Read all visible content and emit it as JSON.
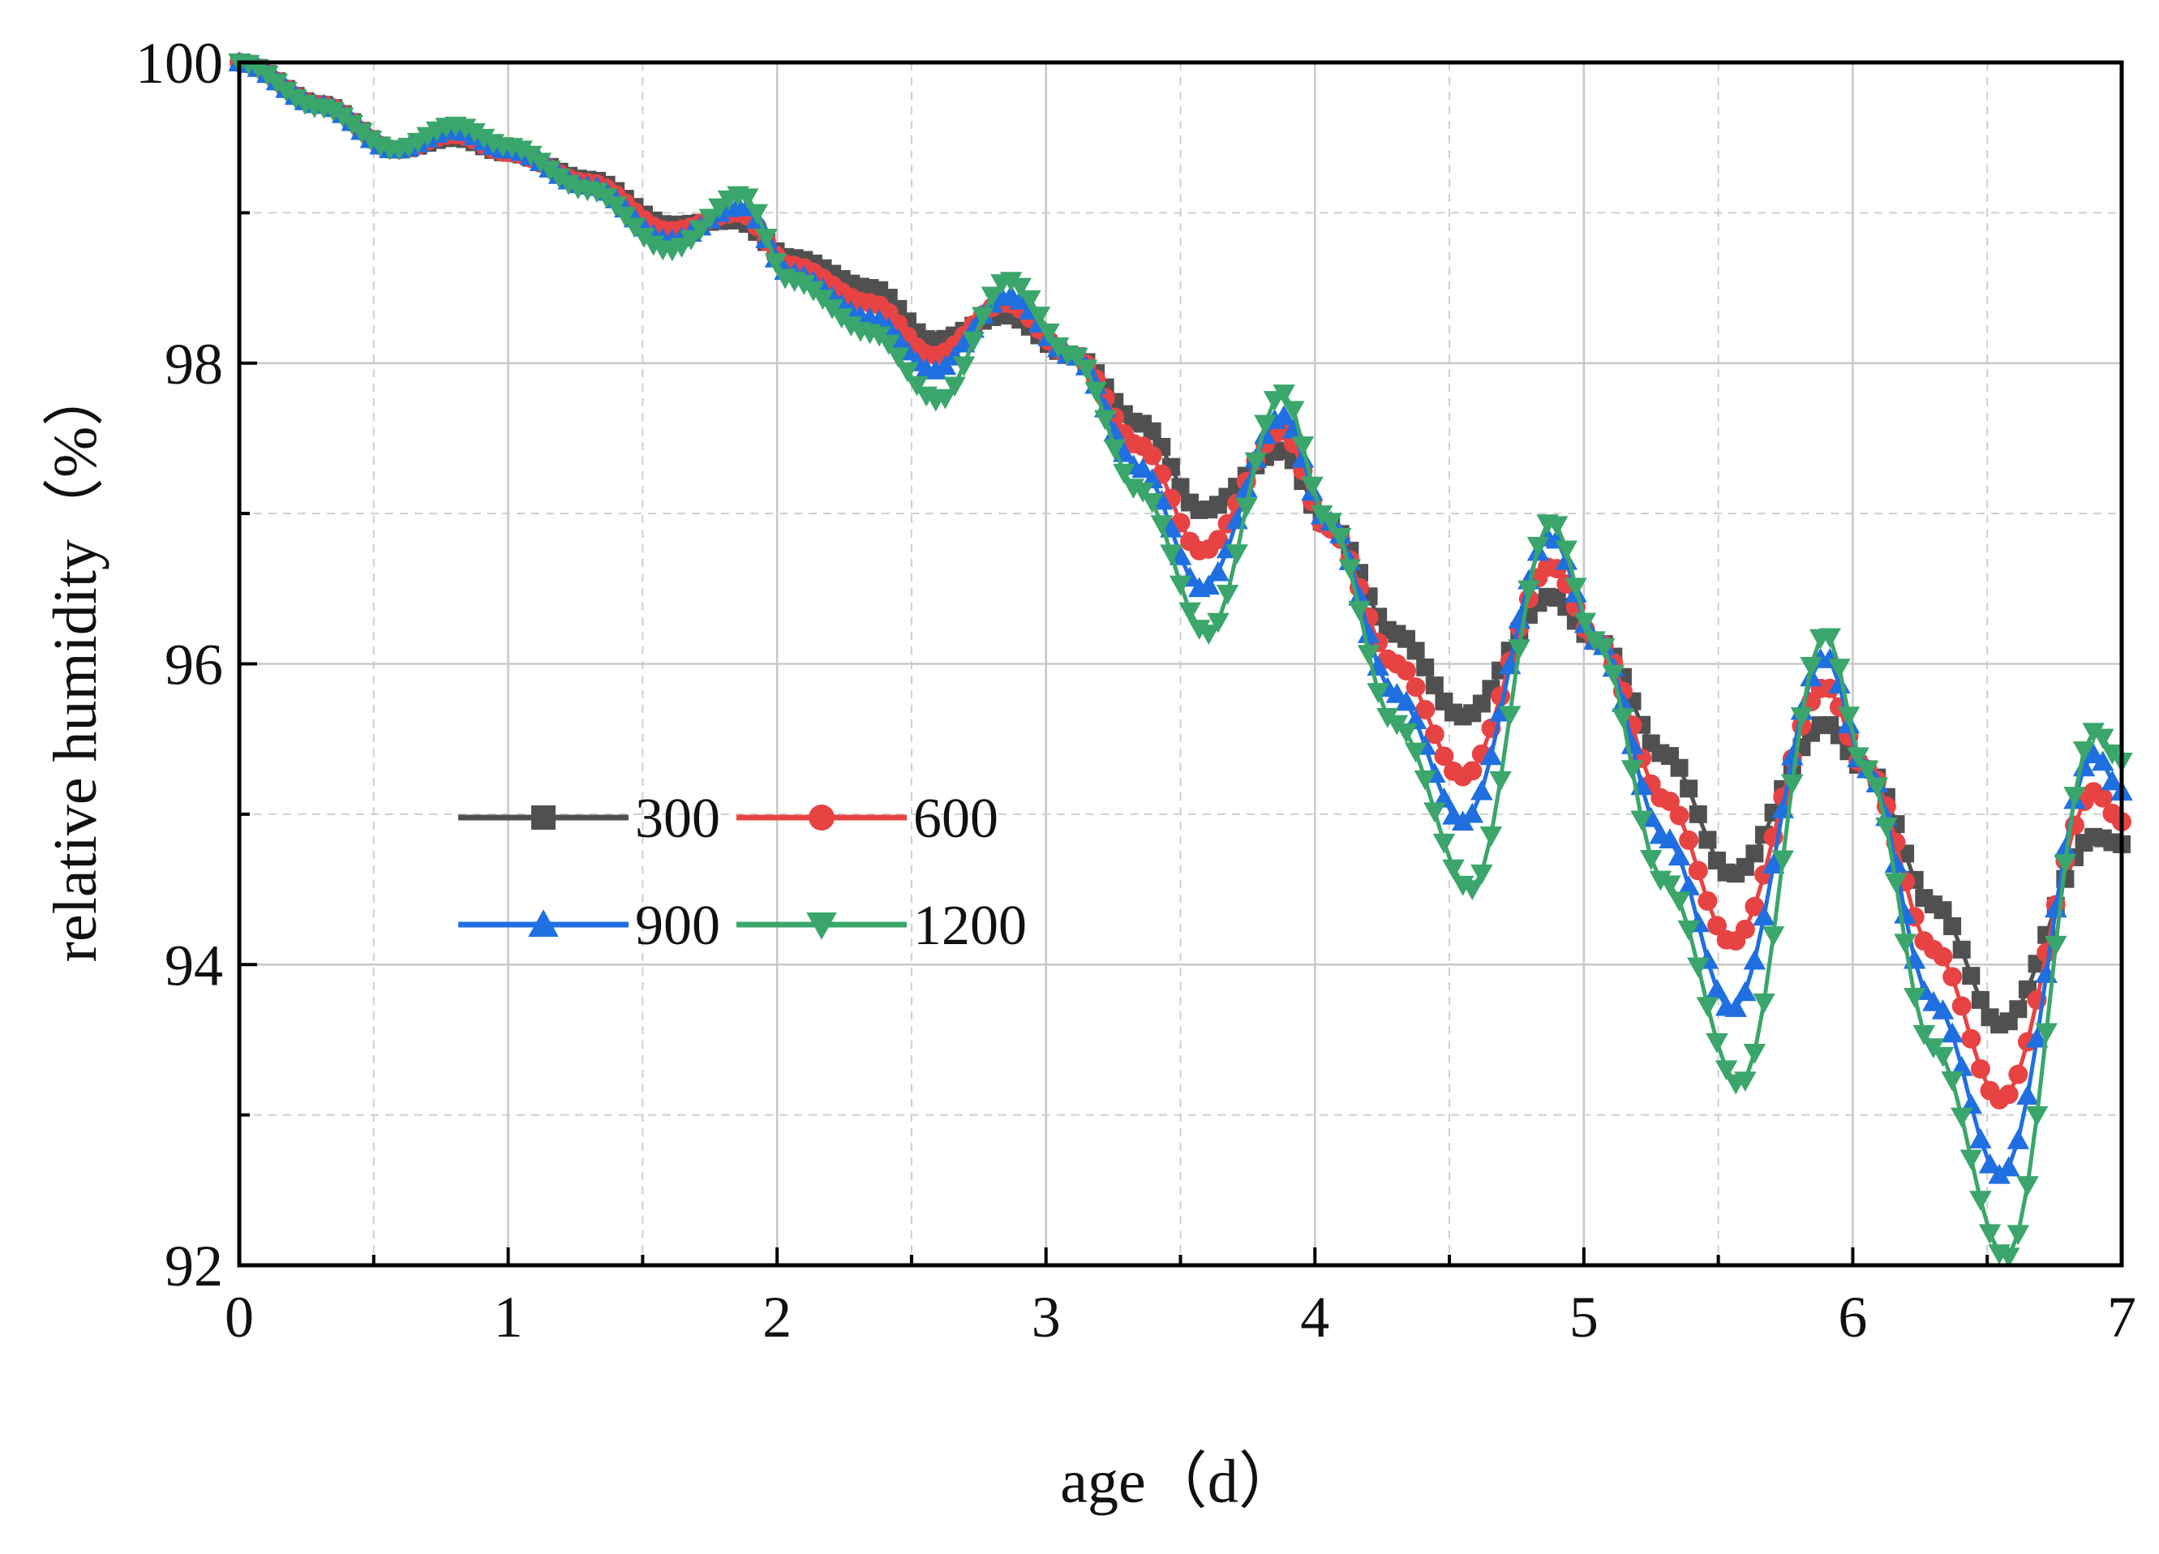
{
  "chart_data": {
    "type": "line",
    "xlabel": "age（d）",
    "ylabel": "relative humidity（%）",
    "xlim": [
      0,
      7
    ],
    "ylim": [
      92,
      100
    ],
    "xticks": [
      0,
      1,
      2,
      3,
      4,
      5,
      6,
      7
    ],
    "xtick_labels": [
      "0",
      "1",
      "2",
      "3",
      "4",
      "5",
      "6",
      "7"
    ],
    "yticks": [
      92,
      94,
      96,
      98,
      100
    ],
    "ytick_labels": [
      "92",
      "94",
      "96",
      "98",
      "100"
    ],
    "grid": true,
    "legend_position": "center-left",
    "series": [
      {
        "name": "300",
        "color": "#505050",
        "marker": "square",
        "points": [
          [
            0,
            100
          ],
          [
            0.3,
            99.72
          ],
          [
            0.58,
            99.42
          ],
          [
            0.8,
            99.5
          ],
          [
            1.0,
            99.4
          ],
          [
            1.3,
            99.22
          ],
          [
            1.6,
            98.92
          ],
          [
            1.85,
            98.95
          ],
          [
            2.05,
            98.7
          ],
          [
            2.35,
            98.5
          ],
          [
            2.58,
            98.15
          ],
          [
            2.85,
            98.32
          ],
          [
            3.1,
            98.05
          ],
          [
            3.35,
            97.6
          ],
          [
            3.58,
            97.02
          ],
          [
            3.88,
            97.42
          ],
          [
            4.05,
            96.92
          ],
          [
            4.3,
            96.2
          ],
          [
            4.55,
            95.65
          ],
          [
            4.88,
            96.45
          ],
          [
            5.05,
            96.15
          ],
          [
            5.3,
            95.4
          ],
          [
            5.55,
            94.6
          ],
          [
            5.9,
            95.6
          ],
          [
            6.05,
            95.3
          ],
          [
            6.3,
            94.4
          ],
          [
            6.55,
            93.6
          ],
          [
            6.9,
            94.85
          ],
          [
            7.0,
            94.8
          ]
        ]
      },
      {
        "name": "600",
        "color": "#e84343",
        "marker": "circle",
        "points": [
          [
            0,
            100
          ],
          [
            0.3,
            99.72
          ],
          [
            0.58,
            99.42
          ],
          [
            0.8,
            99.52
          ],
          [
            1.0,
            99.4
          ],
          [
            1.3,
            99.2
          ],
          [
            1.6,
            98.88
          ],
          [
            1.86,
            99.0
          ],
          [
            2.05,
            98.65
          ],
          [
            2.35,
            98.4
          ],
          [
            2.58,
            98.05
          ],
          [
            2.85,
            98.4
          ],
          [
            3.1,
            98.05
          ],
          [
            3.35,
            97.45
          ],
          [
            3.58,
            96.75
          ],
          [
            3.88,
            97.55
          ],
          [
            4.05,
            96.9
          ],
          [
            4.3,
            96.0
          ],
          [
            4.55,
            95.25
          ],
          [
            4.88,
            96.65
          ],
          [
            5.05,
            96.15
          ],
          [
            5.3,
            95.1
          ],
          [
            5.55,
            94.15
          ],
          [
            5.9,
            95.85
          ],
          [
            6.05,
            95.3
          ],
          [
            6.3,
            94.1
          ],
          [
            6.55,
            93.1
          ],
          [
            6.9,
            95.15
          ],
          [
            7.0,
            94.95
          ]
        ]
      },
      {
        "name": "900",
        "color": "#1f6fe0",
        "marker": "triangle-up",
        "points": [
          [
            0,
            100
          ],
          [
            0.3,
            99.72
          ],
          [
            0.58,
            99.42
          ],
          [
            0.8,
            99.55
          ],
          [
            1.0,
            99.42
          ],
          [
            1.3,
            99.18
          ],
          [
            1.6,
            98.82
          ],
          [
            1.87,
            99.05
          ],
          [
            2.05,
            98.6
          ],
          [
            2.35,
            98.3
          ],
          [
            2.58,
            97.95
          ],
          [
            2.86,
            98.45
          ],
          [
            3.1,
            98.05
          ],
          [
            3.35,
            97.3
          ],
          [
            3.58,
            96.5
          ],
          [
            3.88,
            97.65
          ],
          [
            4.05,
            96.95
          ],
          [
            4.3,
            95.8
          ],
          [
            4.55,
            94.95
          ],
          [
            4.88,
            96.85
          ],
          [
            5.05,
            96.15
          ],
          [
            5.3,
            94.85
          ],
          [
            5.55,
            93.7
          ],
          [
            5.9,
            96.05
          ],
          [
            6.05,
            95.3
          ],
          [
            6.3,
            93.75
          ],
          [
            6.55,
            92.6
          ],
          [
            6.9,
            95.4
          ],
          [
            7.0,
            95.15
          ]
        ]
      },
      {
        "name": "1200",
        "color": "#3aa66b",
        "marker": "triangle-down",
        "points": [
          [
            0,
            100
          ],
          [
            0.3,
            99.7
          ],
          [
            0.58,
            99.42
          ],
          [
            0.8,
            99.58
          ],
          [
            1.0,
            99.44
          ],
          [
            1.3,
            99.15
          ],
          [
            1.6,
            98.75
          ],
          [
            1.87,
            99.12
          ],
          [
            2.05,
            98.55
          ],
          [
            2.35,
            98.2
          ],
          [
            2.6,
            97.75
          ],
          [
            2.86,
            98.55
          ],
          [
            3.1,
            98.05
          ],
          [
            3.35,
            97.15
          ],
          [
            3.6,
            96.2
          ],
          [
            3.88,
            97.8
          ],
          [
            4.05,
            96.95
          ],
          [
            4.3,
            95.6
          ],
          [
            4.58,
            94.5
          ],
          [
            4.88,
            96.95
          ],
          [
            5.05,
            96.15
          ],
          [
            5.3,
            94.55
          ],
          [
            5.58,
            93.2
          ],
          [
            5.9,
            96.2
          ],
          [
            6.05,
            95.3
          ],
          [
            6.3,
            93.45
          ],
          [
            6.57,
            92.05
          ],
          [
            6.9,
            95.55
          ],
          [
            7.0,
            95.35
          ]
        ]
      }
    ]
  }
}
